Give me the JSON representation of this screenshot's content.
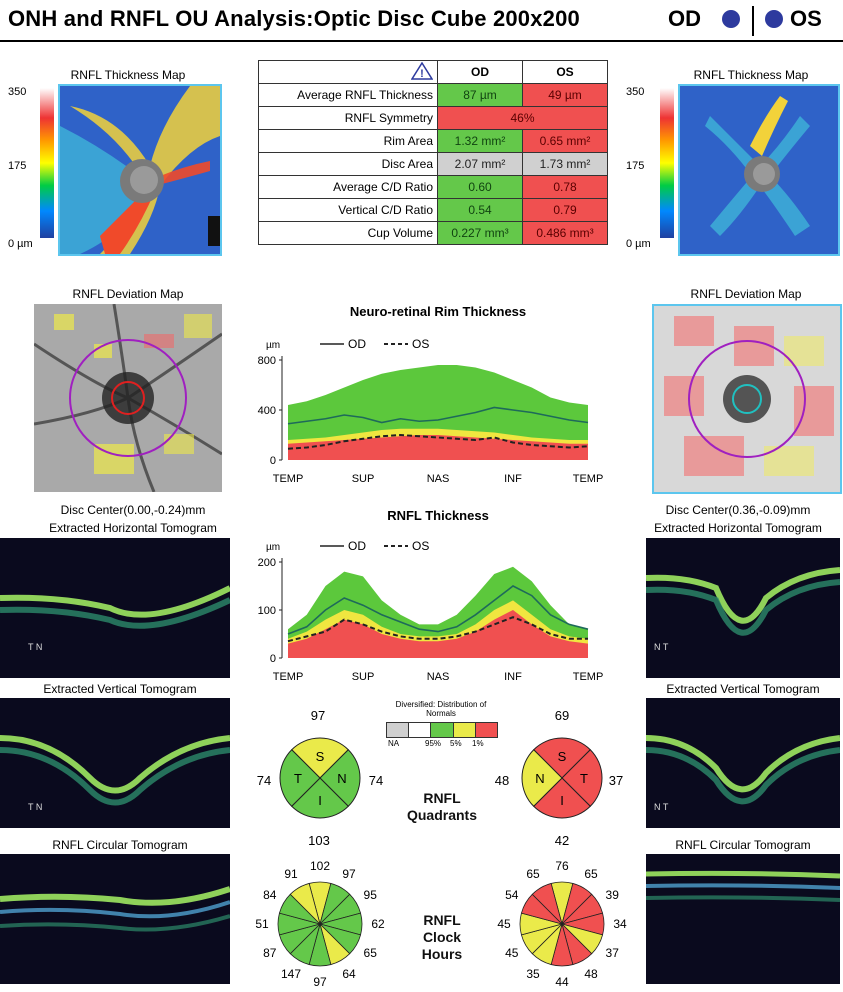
{
  "title": "ONH and RNFL OU Analysis:Optic Disc Cube 200x200",
  "eyes": {
    "od": "OD",
    "os": "OS"
  },
  "od": {
    "thickness_map_label": "RNFL Thickness Map",
    "deviation_map_label": "RNFL Deviation Map",
    "disc_center": "Disc Center(0.00,-0.24)mm",
    "horizontal_label": "Extracted Horizontal Tomogram",
    "vertical_label": "Extracted Vertical Tomogram",
    "circular_label": "RNFL Circular Tomogram",
    "htomo_marker": "T N",
    "vtomo_marker": "T N"
  },
  "os": {
    "thickness_map_label": "RNFL Thickness Map",
    "deviation_map_label": "RNFL Deviation Map",
    "disc_center": "Disc Center(0.36,-0.09)mm",
    "horizontal_label": "Extracted Horizontal Tomogram",
    "vertical_label": "Extracted Vertical Tomogram",
    "circular_label": "RNFL Circular Tomogram",
    "htomo_marker": "N T",
    "vtomo_marker": "N T"
  },
  "scale": {
    "top": "350",
    "mid": "175",
    "bottom": "0 µm"
  },
  "metrics": {
    "header_od": "OD",
    "header_os": "OS",
    "rows": [
      {
        "label": "Average RNFL Thickness",
        "od": "87 µm",
        "os": "49 µm",
        "od_status": "g",
        "os_status": "r"
      },
      {
        "label": "RNFL Symmetry",
        "merged": "46%",
        "status": "r"
      },
      {
        "label": "Rim Area",
        "od": "1.32 mm²",
        "os": "0.65 mm²",
        "od_status": "g",
        "os_status": "r"
      },
      {
        "label": "Disc Area",
        "od": "2.07 mm²",
        "os": "1.73 mm²",
        "od_status": "gr",
        "os_status": "gr"
      },
      {
        "label": "Average C/D Ratio",
        "od": "0.60",
        "os": "0.78",
        "od_status": "g",
        "os_status": "r"
      },
      {
        "label": "Vertical C/D Ratio",
        "od": "0.54",
        "os": "0.79",
        "od_status": "g",
        "os_status": "r"
      },
      {
        "label": "Cup Volume",
        "od": "0.227 mm³",
        "os": "0.486 mm³",
        "od_status": "g",
        "os_status": "r"
      }
    ]
  },
  "chart_data": [
    {
      "type": "area",
      "title": "Neuro-retinal Rim Thickness",
      "ylabel": "µm",
      "legend": [
        "OD",
        "OS"
      ],
      "ylim": [
        0,
        800
      ],
      "yticks": [
        "800",
        "400",
        "0"
      ],
      "categories": [
        "TEMP",
        "SUP",
        "NAS",
        "INF",
        "TEMP"
      ],
      "x": [
        0,
        1,
        2,
        3,
        4,
        5,
        6,
        7,
        8,
        9,
        10,
        11,
        12,
        13,
        14,
        15,
        16
      ],
      "bands": {
        "red": [
          130,
          140,
          150,
          160,
          170,
          180,
          190,
          200,
          200,
          190,
          180,
          170,
          160,
          150,
          140,
          130,
          130
        ],
        "yellow": [
          160,
          170,
          180,
          200,
          220,
          240,
          250,
          250,
          250,
          240,
          230,
          220,
          200,
          180,
          170,
          160,
          160
        ],
        "green": [
          440,
          470,
          520,
          580,
          640,
          690,
          720,
          740,
          760,
          760,
          740,
          700,
          640,
          580,
          500,
          460,
          440
        ]
      },
      "series": [
        {
          "name": "OD",
          "values": [
            290,
            310,
            330,
            360,
            340,
            300,
            330,
            310,
            320,
            350,
            380,
            420,
            400,
            380,
            350,
            320,
            300
          ]
        },
        {
          "name": "OS",
          "values": [
            90,
            100,
            120,
            150,
            170,
            190,
            200,
            190,
            180,
            170,
            160,
            180,
            140,
            120,
            110,
            100,
            110
          ]
        }
      ]
    },
    {
      "type": "area",
      "title": "RNFL Thickness",
      "ylabel": "µm",
      "legend": [
        "OD",
        "OS"
      ],
      "ylim": [
        0,
        200
      ],
      "yticks": [
        "200",
        "100",
        "0"
      ],
      "categories": [
        "TEMP",
        "SUP",
        "NAS",
        "INF",
        "TEMP"
      ],
      "x": [
        0,
        1,
        2,
        3,
        4,
        5,
        6,
        7,
        8,
        9,
        10,
        11,
        12,
        13,
        14,
        15,
        16
      ],
      "bands": {
        "red": [
          30,
          40,
          60,
          80,
          70,
          50,
          40,
          35,
          35,
          40,
          55,
          80,
          100,
          70,
          45,
          35,
          30
        ],
        "yellow": [
          40,
          55,
          80,
          100,
          90,
          65,
          50,
          45,
          45,
          50,
          70,
          100,
          120,
          90,
          60,
          45,
          40
        ],
        "green": [
          60,
          90,
          150,
          180,
          170,
          120,
          90,
          70,
          70,
          90,
          130,
          175,
          190,
          160,
          110,
          70,
          60
        ]
      },
      "series": [
        {
          "name": "OD",
          "values": [
            50,
            65,
            100,
            125,
            110,
            90,
            75,
            60,
            55,
            65,
            90,
            120,
            150,
            130,
            90,
            70,
            60
          ]
        },
        {
          "name": "OS",
          "values": [
            35,
            45,
            55,
            80,
            70,
            55,
            45,
            40,
            40,
            45,
            55,
            70,
            85,
            70,
            50,
            40,
            40
          ]
        }
      ]
    }
  ],
  "legend_norms": {
    "title": "Diversified: Distribution of Normals",
    "labels": [
      "NA",
      "95%",
      "5%",
      "1%"
    ]
  },
  "quadrants": {
    "label": "RNFL Quadrants",
    "od": {
      "S": "97",
      "N": "74",
      "I": "103",
      "T": "74",
      "letters": [
        "S",
        "N",
        "I",
        "T"
      ],
      "colors": [
        "#eaea4a",
        "#64c84a",
        "#64c84a",
        "#64c84a"
      ]
    },
    "os": {
      "S": "69",
      "T": "37",
      "I": "42",
      "N": "48",
      "letters": [
        "S",
        "T",
        "I",
        "N"
      ],
      "colors": [
        "#f05050",
        "#f05050",
        "#f05050",
        "#eaea4a"
      ]
    }
  },
  "clock": {
    "label": "RNFL Clock Hours",
    "od": {
      "values": [
        "102",
        "97",
        "95",
        "62",
        "65",
        "64",
        "97",
        "147",
        "87",
        "51",
        "84",
        "91"
      ],
      "colors": [
        "#eaea4a",
        "#64c84a",
        "#64c84a",
        "#64c84a",
        "#64c84a",
        "#eaea4a",
        "#64c84a",
        "#64c84a",
        "#64c84a",
        "#64c84a",
        "#64c84a",
        "#eaea4a"
      ]
    },
    "os": {
      "values": [
        "76",
        "65",
        "39",
        "34",
        "37",
        "48",
        "44",
        "35",
        "45",
        "45",
        "54",
        "65"
      ],
      "colors": [
        "#eaea4a",
        "#f05050",
        "#f05050",
        "#f05050",
        "#eaea4a",
        "#f05050",
        "#f05050",
        "#eaea4a",
        "#eaea4a",
        "#eaea4a",
        "#f05050",
        "#f05050"
      ]
    }
  }
}
